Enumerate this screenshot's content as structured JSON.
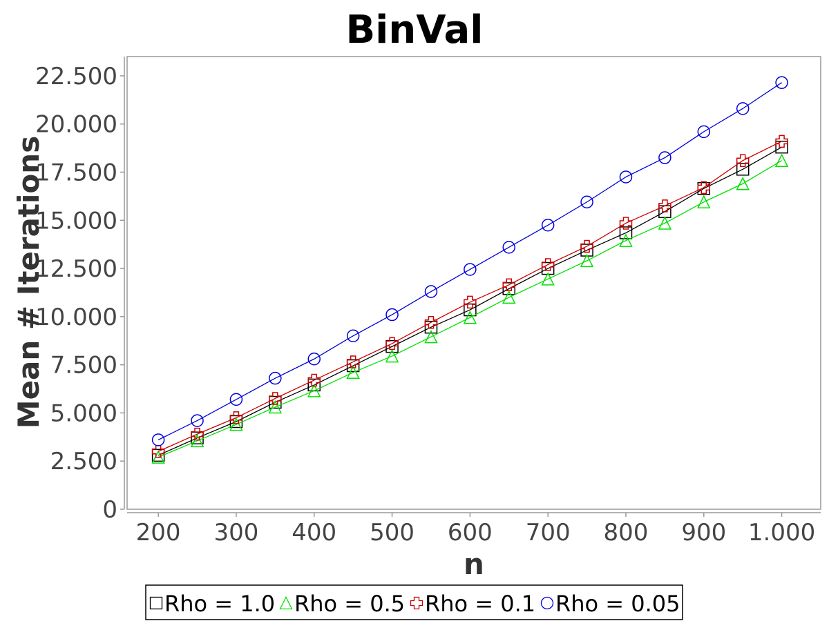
{
  "chart_data": {
    "type": "line",
    "title": "BinVal",
    "xlabel": "n",
    "ylabel": "Mean # Iterations",
    "x": [
      200,
      250,
      300,
      350,
      400,
      450,
      500,
      550,
      600,
      650,
      700,
      750,
      800,
      850,
      900,
      950,
      1000
    ],
    "xlim": [
      160,
      1050
    ],
    "ylim": [
      0,
      23500
    ],
    "x_ticks": [
      200,
      300,
      400,
      500,
      600,
      700,
      800,
      900,
      1000
    ],
    "x_tick_labels": [
      "200",
      "300",
      "400",
      "500",
      "600",
      "700",
      "800",
      "900",
      "1.000"
    ],
    "y_ticks": [
      0,
      2500,
      5000,
      7500,
      10000,
      12500,
      15000,
      17500,
      20000,
      22500
    ],
    "y_tick_labels": [
      "0",
      "2.500",
      "5.000",
      "7.500",
      "10.000",
      "12.500",
      "15.000",
      "17.500",
      "20.000",
      "22.500"
    ],
    "grid": false,
    "legend_position": "bottom-center",
    "series": [
      {
        "name": "Rho = 1.0",
        "color": "#000000",
        "marker": "square",
        "values": [
          2800,
          3700,
          4550,
          5550,
          6450,
          7450,
          8450,
          9450,
          10350,
          11450,
          12500,
          13450,
          14350,
          15450,
          16650,
          17650,
          18800
        ]
      },
      {
        "name": "Rho = 0.5",
        "color": "#00e000",
        "marker": "triangle",
        "values": [
          2700,
          3550,
          4400,
          5300,
          6150,
          7100,
          7950,
          8950,
          9950,
          11000,
          11950,
          12900,
          13950,
          14850,
          15950,
          16900,
          18100
        ]
      },
      {
        "name": "Rho = 0.1",
        "color": "#cc0000",
        "marker": "cross",
        "values": [
          3000,
          3900,
          4750,
          5750,
          6700,
          7650,
          8600,
          9700,
          10750,
          11650,
          12700,
          13650,
          14850,
          15750,
          16700,
          18100,
          19100
        ]
      },
      {
        "name": "Rho = 0.05",
        "color": "#0000dd",
        "marker": "circle",
        "values": [
          3600,
          4600,
          5700,
          6800,
          7800,
          9000,
          10100,
          11300,
          12450,
          13600,
          14750,
          15950,
          17250,
          18250,
          19600,
          20800,
          22150
        ]
      }
    ]
  }
}
